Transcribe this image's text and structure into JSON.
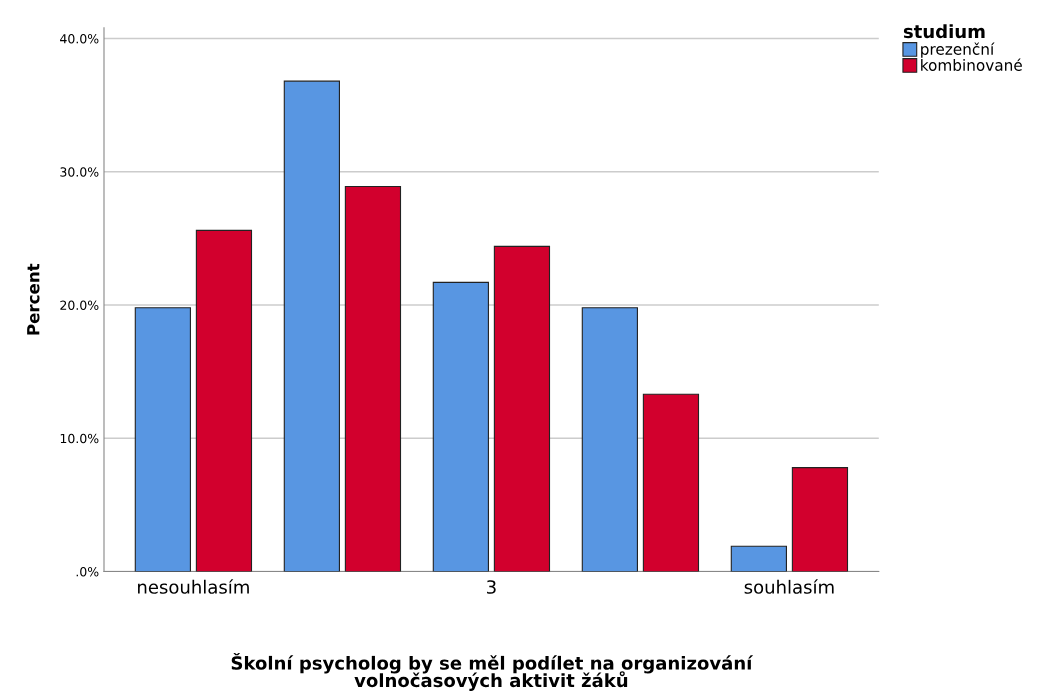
{
  "chart_data": {
    "type": "bar",
    "xlabel": "Školní psycholog by se měl podílet na organizování\nvolnočasových aktivit žáků",
    "ylabel": "Percent",
    "legend_title": "studium",
    "categories": [
      "nesouhlasím",
      null,
      "3",
      null,
      "souhlasím"
    ],
    "series": [
      {
        "name": "prezenční",
        "color": "#5896e2",
        "values": [
          19.8,
          36.8,
          21.7,
          19.8,
          1.9
        ]
      },
      {
        "name": "kombinované",
        "color": "#d2002d",
        "values": [
          25.6,
          28.9,
          24.4,
          13.3,
          7.8
        ]
      }
    ],
    "ylim": [
      0,
      40.8
    ],
    "yticks": [
      {
        "value": 0,
        "label": ".0%"
      },
      {
        "value": 10,
        "label": "10.0%"
      },
      {
        "value": 20,
        "label": "20.0%"
      },
      {
        "value": 30,
        "label": "30.0%"
      },
      {
        "value": 40,
        "label": "40.0%"
      }
    ],
    "grid": "y",
    "legend": "top right"
  }
}
